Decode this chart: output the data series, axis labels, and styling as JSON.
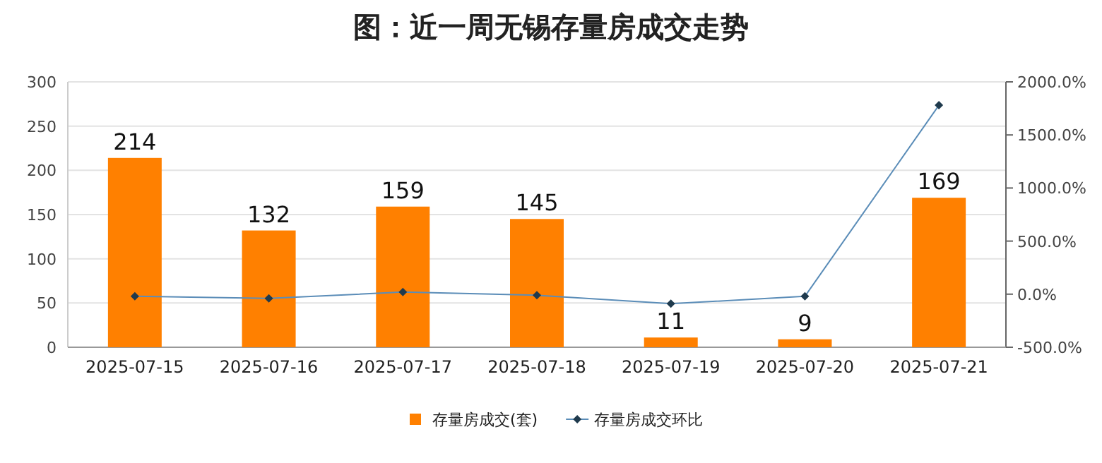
{
  "chart_data": {
    "type": "bar",
    "title": "图：近一周无锡存量房成交走势",
    "categories": [
      "2025-07-15",
      "2025-07-16",
      "2025-07-17",
      "2025-07-18",
      "2025-07-19",
      "2025-07-20",
      "2025-07-21"
    ],
    "series": [
      {
        "name": "存量房成交(套)",
        "color": "#ff8000",
        "values": [
          214,
          132,
          159,
          145,
          11,
          9,
          169
        ],
        "value_labels": [
          "214",
          "132",
          "159",
          "145",
          "11",
          "9",
          "169"
        ]
      },
      {
        "name": "存量房成交环比",
        "type": "line",
        "axis": "y2",
        "color": "#5b8db8",
        "marker": "diamond",
        "values": [
          -20,
          -40,
          20,
          -10,
          -90,
          -20,
          1780
        ]
      }
    ],
    "ylim": [
      0,
      300
    ],
    "yticks": [
      0,
      50,
      100,
      150,
      200,
      250,
      300
    ],
    "y2lim": [
      -500,
      2000
    ],
    "y2ticks": [
      {
        "value": -500,
        "label": "-500.0%"
      },
      {
        "value": 0,
        "label": "0.0%"
      },
      {
        "value": 500,
        "label": "500.0%"
      },
      {
        "value": 1000,
        "label": "1000.0%"
      },
      {
        "value": 1500,
        "label": "1500.0%"
      },
      {
        "value": 2000,
        "label": "2000.0%"
      }
    ],
    "grid": "y",
    "legend": "bottom"
  }
}
